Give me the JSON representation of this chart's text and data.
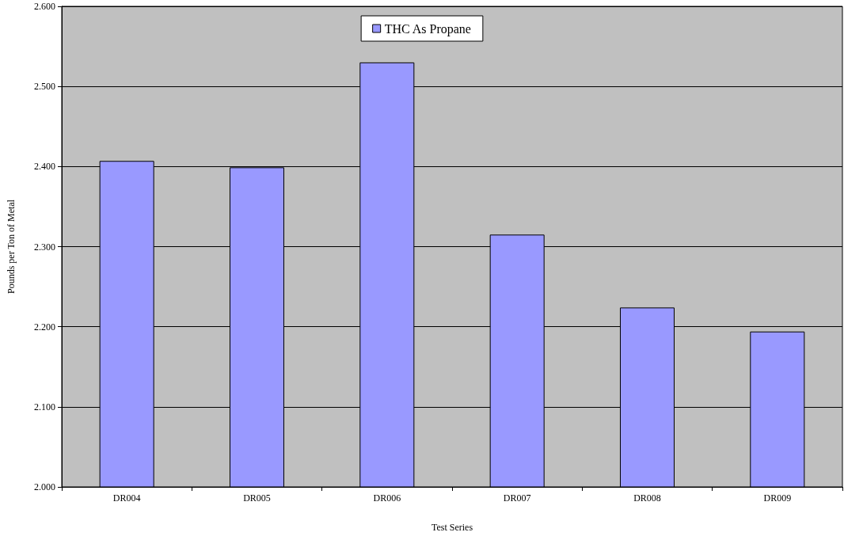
{
  "chart_data": {
    "type": "bar",
    "xlabel": "Test Series",
    "ylabel": "Pounds per Ton of Metal",
    "categories": [
      "DR004",
      "DR005",
      "DR006",
      "DR007",
      "DR008",
      "DR009"
    ],
    "series": [
      {
        "name": "THC As Propane",
        "color": "#9999ff",
        "values": [
          2.407,
          2.399,
          2.53,
          2.315,
          2.224,
          2.194
        ]
      }
    ],
    "ylim": [
      2.0,
      2.6
    ],
    "yticks": [
      {
        "value": 2.0,
        "label": "2.000"
      },
      {
        "value": 2.1,
        "label": "2.100"
      },
      {
        "value": 2.2,
        "label": "2.200"
      },
      {
        "value": 2.3,
        "label": "2.300"
      },
      {
        "value": 2.4,
        "label": "2.400"
      },
      {
        "value": 2.5,
        "label": "2.500"
      },
      {
        "value": 2.6,
        "label": "2.600"
      }
    ],
    "grid": "y",
    "legend": "top"
  }
}
